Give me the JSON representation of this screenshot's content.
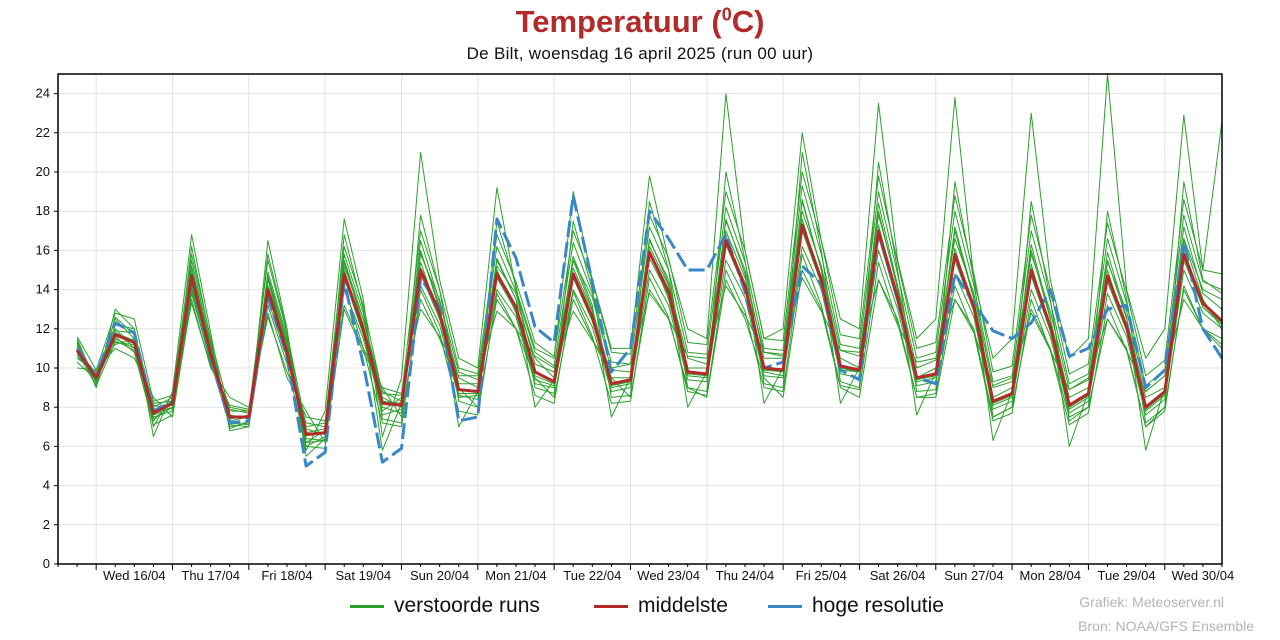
{
  "header": {
    "title": "Temperatuur (",
    "title_sup": "0",
    "title_end": "C)",
    "subtitle": "De Bilt, woensdag 16 april 2025 (run 00 uur)"
  },
  "legend": {
    "perturbed": "verstoorde runs",
    "median": "middelste",
    "highres": "hoge resolutie"
  },
  "credits": {
    "line1": "Grafiek: Meteoserver.nl",
    "line2": "Bron: NOAA/GFS Ensemble"
  },
  "colors": {
    "perturbed": "#2ca02c",
    "median": "#b22a2a",
    "highres": "#3a87c8",
    "title": "#b22a2a"
  },
  "chart_data": {
    "type": "line",
    "x_unit": "hours since Wed 16/04 00:00",
    "xlim": [
      -12,
      354
    ],
    "ylim": [
      0,
      25
    ],
    "yticks": [
      0,
      2,
      4,
      6,
      8,
      10,
      12,
      14,
      16,
      18,
      20,
      22,
      24
    ],
    "grid": true,
    "legend_position": "bottom",
    "day_labels": [
      "Wed 16/04",
      "Thu 17/04",
      "Fri 18/04",
      "Sat 19/04",
      "Sun 20/04",
      "Mon 21/04",
      "Tue 22/04",
      "Wed 23/04",
      "Thu 24/04",
      "Fri 25/04",
      "Sat 26/04",
      "Sun 27/04",
      "Mon 28/04",
      "Tue 29/04",
      "Wed 30/04"
    ],
    "x": [
      -6,
      0,
      6,
      12,
      18,
      24,
      30,
      36,
      42,
      48,
      54,
      60,
      66,
      72,
      78,
      84,
      90,
      96,
      102,
      108,
      114,
      120,
      126,
      132,
      138,
      144,
      150,
      156,
      162,
      168,
      174,
      180,
      186,
      192,
      198,
      204,
      210,
      216,
      222,
      228,
      234,
      240,
      246,
      252,
      258,
      264,
      270,
      276,
      282,
      288,
      294,
      300,
      306,
      312,
      318,
      324,
      330,
      336,
      342,
      348,
      354
    ],
    "median": [
      10.9,
      9.5,
      11.7,
      11.3,
      7.7,
      8.2,
      14.7,
      10.7,
      7.5,
      7.5,
      14.0,
      10.8,
      6.6,
      6.7,
      14.8,
      12.0,
      8.2,
      8.1,
      15.0,
      12.8,
      8.9,
      8.8,
      14.8,
      13.1,
      9.8,
      9.3,
      14.8,
      12.6,
      9.2,
      9.4,
      15.9,
      13.9,
      9.8,
      9.7,
      16.5,
      14.2,
      10.0,
      9.9,
      17.3,
      14.5,
      10.1,
      9.9,
      17.0,
      13.6,
      9.5,
      9.7,
      15.8,
      13.1,
      8.3,
      8.7,
      15.0,
      12.1,
      8.1,
      8.7,
      14.7,
      12.1,
      8.0,
      8.8,
      15.8,
      13.3,
      12.4
    ],
    "highres": [
      11.0,
      9.6,
      12.3,
      11.8,
      7.8,
      8.3,
      14.6,
      10.5,
      7.2,
      7.3,
      13.6,
      10.6,
      5.0,
      5.7,
      14.4,
      10.2,
      5.2,
      5.9,
      14.6,
      13.1,
      7.3,
      7.5,
      17.6,
      15.6,
      12.1,
      11.3,
      18.8,
      14.4,
      9.8,
      11.0,
      18.0,
      16.6,
      15.0,
      15.0,
      16.8,
      13.9,
      10.0,
      10.3,
      15.2,
      14.3,
      9.9,
      9.4,
      16.9,
      13.5,
      9.5,
      9.2,
      14.8,
      13.3,
      11.9,
      11.5,
      12.3,
      14.0,
      10.6,
      11.0,
      13.0,
      13.2,
      9.0,
      9.9,
      16.4,
      12.0,
      10.5
    ],
    "perturbed": [
      [
        11.5,
        9.2,
        12.0,
        11.0,
        8.0,
        8.5,
        15.2,
        11.0,
        7.0,
        7.2,
        14.5,
        11.0,
        6.0,
        6.5,
        15.5,
        12.5,
        8.5,
        8.0,
        16.0,
        13.0,
        9.5,
        9.0,
        15.5,
        13.5,
        10.5,
        9.5,
        15.5,
        13.0,
        9.5,
        9.5,
        16.5,
        14.5,
        10.0,
        10.0,
        17.5,
        15.0,
        10.5,
        10.5,
        18.5,
        15.0,
        10.5,
        10.0,
        18.0,
        14.0,
        9.5,
        10.0,
        17.0,
        13.5,
        8.5,
        9.0,
        16.0,
        12.5,
        8.5,
        9.0,
        15.5,
        12.5,
        8.5,
        9.0,
        16.5,
        13.5,
        12.0
      ],
      [
        10.5,
        9.8,
        11.2,
        11.5,
        7.5,
        7.8,
        14.0,
        10.2,
        8.0,
        7.8,
        13.5,
        10.5,
        7.2,
        7.0,
        14.0,
        11.5,
        7.8,
        8.5,
        14.2,
        12.2,
        8.5,
        8.6,
        14.0,
        12.6,
        9.2,
        9.0,
        14.0,
        12.1,
        8.8,
        9.0,
        15.0,
        13.2,
        9.4,
        9.3,
        15.5,
        13.6,
        9.6,
        9.5,
        16.2,
        14.0,
        9.7,
        9.5,
        16.0,
        13.0,
        9.1,
        9.3,
        14.8,
        12.6,
        7.9,
        8.3,
        14.0,
        11.6,
        7.7,
        8.3,
        13.8,
        11.6,
        7.6,
        8.4,
        15.0,
        12.8,
        12.0
      ],
      [
        11.2,
        9.0,
        13.0,
        12.0,
        6.5,
        8.8,
        16.8,
        11.8,
        6.8,
        7.0,
        16.5,
        12.0,
        5.8,
        7.8,
        17.6,
        13.5,
        6.5,
        9.5,
        21.0,
        14.5,
        10.5,
        10.0,
        19.2,
        14.0,
        11.0,
        10.5,
        19.0,
        14.5,
        11.0,
        11.0,
        19.8,
        15.5,
        12.0,
        11.5,
        24.0,
        16.0,
        11.5,
        12.0,
        22.0,
        16.5,
        12.5,
        12.0,
        23.5,
        15.5,
        11.5,
        12.5,
        23.8,
        14.5,
        10.5,
        11.5,
        23.0,
        14.5,
        10.5,
        11.5,
        25.0,
        14.0,
        10.5,
        12.0,
        22.9,
        15.0,
        22.6
      ],
      [
        10.0,
        9.9,
        11.0,
        10.5,
        8.5,
        7.5,
        13.5,
        10.0,
        8.5,
        8.0,
        12.8,
        9.5,
        7.8,
        6.2,
        13.0,
        10.8,
        9.0,
        7.5,
        13.5,
        11.5,
        9.0,
        8.0,
        13.5,
        12.0,
        9.5,
        8.5,
        13.5,
        11.5,
        9.5,
        8.5,
        14.0,
        12.5,
        9.0,
        8.5,
        14.5,
        12.5,
        9.5,
        8.5,
        15.0,
        13.0,
        9.0,
        8.5,
        14.5,
        12.5,
        8.5,
        8.5,
        13.5,
        12.0,
        7.5,
        8.0,
        13.0,
        11.0,
        7.5,
        8.0,
        12.5,
        11.0,
        7.0,
        8.0,
        14.0,
        12.0,
        11.0
      ],
      [
        11.0,
        9.5,
        12.5,
        11.5,
        7.9,
        8.1,
        14.8,
        10.8,
        7.6,
        7.4,
        14.2,
        11.2,
        6.2,
        6.8,
        15.2,
        12.5,
        8.8,
        8.3,
        15.8,
        13.5,
        9.2,
        9.2,
        15.2,
        13.8,
        10.2,
        9.8,
        15.5,
        13.6,
        9.9,
        9.8,
        16.2,
        14.2,
        10.5,
        10.2,
        17.0,
        14.6,
        10.8,
        10.6,
        18.0,
        15.2,
        10.9,
        10.6,
        17.8,
        14.2,
        10.0,
        10.4,
        16.6,
        13.8,
        9.0,
        9.3,
        15.8,
        12.9,
        8.9,
        9.4,
        15.4,
        12.9,
        8.8,
        9.6,
        16.6,
        14.0,
        13.5
      ],
      [
        11.3,
        9.3,
        11.5,
        11.0,
        7.3,
        8.4,
        14.3,
        10.4,
        7.9,
        7.7,
        14.6,
        11.3,
        6.9,
        6.6,
        15.0,
        11.8,
        7.6,
        7.9,
        15.4,
        12.6,
        8.6,
        8.4,
        15.0,
        12.8,
        9.4,
        9.1,
        15.1,
        12.9,
        9.0,
        9.2,
        16.0,
        13.5,
        9.6,
        9.5,
        16.8,
        14.0,
        9.8,
        9.6,
        17.6,
        14.4,
        9.9,
        9.8,
        17.3,
        13.4,
        9.3,
        9.5,
        16.1,
        12.9,
        8.1,
        8.5,
        15.3,
        11.9,
        7.9,
        8.5,
        15.0,
        11.9,
        7.8,
        8.6,
        16.1,
        13.1,
        12.2
      ],
      [
        10.6,
        9.7,
        11.9,
        11.8,
        8.1,
        7.9,
        15.5,
        11.2,
        7.2,
        7.1,
        14.9,
        11.6,
        6.4,
        6.3,
        15.8,
        12.8,
        8.0,
        7.7,
        16.5,
        13.4,
        9.8,
        9.4,
        16.2,
        13.9,
        10.8,
        10.1,
        16.4,
        13.8,
        10.3,
        10.2,
        17.2,
        15.0,
        10.8,
        10.7,
        18.2,
        15.4,
        11.0,
        10.9,
        19.3,
        15.8,
        11.2,
        11.0,
        19.0,
        14.8,
        10.5,
        10.8,
        18.0,
        14.2,
        9.3,
        9.6,
        17.0,
        13.4,
        9.2,
        9.7,
        16.6,
        13.3,
        9.1,
        9.9,
        17.8,
        14.4,
        14.0
      ],
      [
        10.8,
        9.1,
        11.3,
        11.2,
        7.6,
        8.0,
        14.1,
        10.6,
        7.4,
        7.6,
        13.8,
        10.9,
        6.7,
        6.9,
        14.6,
        11.7,
        8.3,
        8.2,
        14.8,
        12.5,
        8.7,
        8.7,
        14.6,
        12.9,
        9.6,
        9.2,
        14.6,
        12.4,
        9.1,
        9.3,
        15.6,
        13.7,
        9.7,
        9.6,
        16.3,
        14.0,
        9.9,
        9.8,
        17.0,
        14.3,
        10.0,
        9.8,
        16.7,
        13.3,
        9.4,
        9.6,
        15.5,
        12.9,
        8.2,
        8.6,
        14.7,
        11.9,
        8.0,
        8.6,
        14.4,
        11.9,
        7.9,
        8.7,
        15.5,
        13.1,
        12.3
      ],
      [
        11.6,
        9.9,
        12.8,
        12.5,
        8.3,
        8.6,
        15.8,
        11.5,
        7.8,
        7.8,
        15.5,
        11.8,
        7.0,
        7.2,
        16.2,
        13.2,
        8.7,
        8.6,
        17.0,
        14.0,
        10.0,
        9.7,
        16.8,
        14.4,
        11.3,
        10.6,
        17.0,
        14.5,
        10.8,
        10.7,
        17.8,
        15.6,
        11.3,
        11.2,
        19.0,
        16.0,
        11.5,
        11.4,
        20.0,
        16.5,
        11.7,
        11.5,
        19.8,
        15.4,
        11.0,
        11.3,
        18.8,
        14.8,
        9.8,
        10.1,
        17.8,
        14.0,
        9.7,
        10.2,
        17.4,
        13.9,
        9.6,
        10.4,
        18.6,
        15.0,
        14.8
      ],
      [
        10.3,
        9.4,
        11.6,
        10.8,
        7.1,
        7.6,
        13.8,
        10.3,
        7.1,
        7.0,
        13.2,
        10.2,
        6.0,
        5.9,
        14.2,
        11.0,
        7.2,
        7.0,
        14.0,
        11.8,
        7.8,
        7.6,
        13.8,
        12.0,
        8.6,
        8.2,
        13.9,
        11.6,
        8.2,
        8.3,
        14.6,
        12.6,
        8.8,
        8.6,
        15.0,
        12.9,
        9.0,
        8.8,
        15.8,
        13.2,
        9.1,
        8.9,
        15.4,
        12.3,
        8.5,
        8.7,
        14.2,
        11.8,
        7.3,
        7.7,
        13.5,
        10.9,
        7.1,
        7.7,
        13.2,
        10.9,
        7.0,
        7.8,
        14.2,
        12.0,
        11.2
      ],
      [
        11.1,
        9.6,
        11.8,
        11.4,
        7.8,
        8.2,
        14.6,
        10.7,
        7.5,
        7.5,
        14.1,
        10.8,
        6.6,
        6.7,
        14.9,
        12.1,
        8.2,
        8.1,
        15.1,
        12.9,
        8.9,
        8.8,
        14.9,
        13.1,
        9.8,
        9.3,
        14.8,
        12.6,
        9.2,
        9.4,
        15.9,
        13.9,
        9.8,
        9.7,
        16.5,
        14.2,
        10.0,
        9.9,
        17.2,
        14.5,
        10.1,
        9.9,
        17.0,
        13.6,
        9.5,
        9.7,
        15.8,
        13.1,
        8.3,
        8.7,
        15.0,
        12.1,
        8.1,
        8.7,
        14.7,
        12.1,
        8.0,
        8.8,
        15.8,
        13.3,
        12.4
      ],
      [
        10.9,
        9.3,
        12.2,
        12.0,
        7.4,
        8.0,
        16.2,
        11.4,
        6.9,
        7.3,
        15.8,
        11.9,
        6.2,
        6.3,
        16.8,
        13.0,
        7.4,
        7.2,
        17.8,
        14.0,
        8.3,
        8.0,
        17.5,
        14.2,
        9.0,
        8.7,
        17.5,
        14.0,
        8.5,
        8.6,
        18.5,
        15.0,
        9.0,
        8.8,
        20.0,
        15.5,
        9.2,
        9.0,
        21.0,
        16.0,
        9.3,
        9.0,
        20.5,
        15.0,
        8.8,
        8.9,
        19.5,
        14.5,
        7.5,
        8.0,
        18.5,
        13.5,
        7.3,
        8.0,
        18.0,
        13.5,
        7.2,
        8.0,
        19.5,
        14.5,
        13.8
      ],
      [
        10.7,
        9.7,
        11.4,
        10.9,
        8.2,
        8.3,
        13.3,
        10.1,
        8.1,
        7.9,
        12.6,
        9.8,
        7.5,
        7.3,
        13.2,
        11.0,
        9.0,
        8.7,
        13.0,
        11.6,
        9.6,
        9.6,
        12.9,
        12.0,
        10.6,
        10.0,
        12.9,
        11.4,
        10.0,
        10.2,
        13.8,
        12.5,
        10.6,
        10.5,
        14.2,
        12.7,
        10.8,
        10.7,
        14.6,
        12.9,
        10.9,
        10.8,
        14.5,
        12.2,
        10.3,
        10.5,
        13.5,
        11.8,
        9.1,
        9.5,
        12.8,
        10.9,
        8.9,
        9.5,
        12.5,
        10.9,
        8.8,
        9.6,
        13.5,
        12.0,
        11.5
      ],
      [
        11.4,
        9.0,
        12.6,
        11.7,
        7.0,
        8.7,
        15.0,
        11.1,
        7.3,
        7.5,
        14.7,
        11.4,
        5.5,
        6.4,
        15.4,
        12.2,
        5.8,
        8.2,
        15.9,
        13.2,
        7.0,
        8.8,
        15.6,
        13.5,
        8.0,
        9.4,
        15.7,
        13.2,
        7.5,
        9.5,
        16.6,
        14.3,
        8.0,
        9.8,
        17.6,
        14.8,
        8.2,
        10.0,
        18.6,
        15.0,
        8.2,
        10.0,
        18.4,
        14.2,
        7.6,
        9.8,
        17.2,
        13.6,
        6.3,
        8.8,
        16.3,
        12.6,
        6.0,
        8.8,
        15.9,
        12.6,
        5.8,
        9.0,
        17.2,
        13.8,
        13.0
      ]
    ]
  }
}
